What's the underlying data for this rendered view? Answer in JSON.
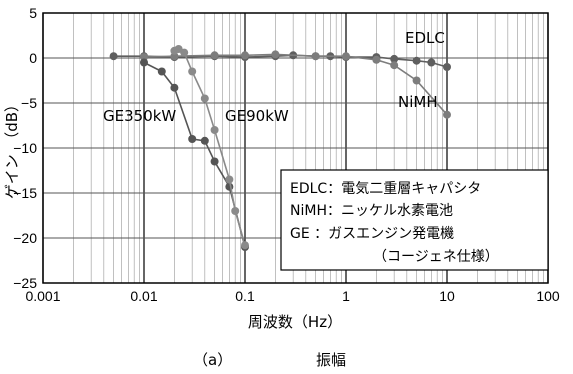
{
  "chart_data": {
    "type": "line",
    "xscale": "log",
    "xlim": [
      0.001,
      100
    ],
    "ylim": [
      -25,
      5
    ],
    "x_ticks": [
      0.001,
      0.01,
      0.1,
      1,
      10,
      100
    ],
    "x_tick_labels": [
      "0.001",
      "0.01",
      "0.1",
      "1",
      "10",
      "100"
    ],
    "y_ticks": [
      5,
      0,
      -5,
      -10,
      -15,
      -20,
      -25
    ],
    "y_tick_labels": [
      "5",
      "0",
      "−5",
      "−10",
      "−15",
      "−20",
      "−25"
    ],
    "xlabel": "周波数（Hz）",
    "ylabel": "ゲイン　（dB）",
    "grid": true,
    "series": [
      {
        "name": "EDLC",
        "color": "#5f5f5f",
        "x": [
          0.005,
          0.01,
          0.02,
          0.05,
          0.1,
          0.2,
          0.3,
          0.5,
          0.7,
          1,
          2,
          3,
          5,
          7,
          10
        ],
        "y": [
          0.2,
          0.2,
          0.1,
          0.2,
          0.1,
          0.2,
          0.3,
          0.2,
          0.2,
          0.1,
          0.1,
          -0.1,
          -0.3,
          -0.5,
          -1.0
        ]
      },
      {
        "name": "NiMH",
        "color": "#7d7d7d",
        "x": [
          0.01,
          0.02,
          0.05,
          0.1,
          0.2,
          0.5,
          1,
          2,
          3,
          5,
          10
        ],
        "y": [
          0.1,
          0.2,
          0.3,
          0.3,
          0.4,
          0.2,
          0.2,
          -0.2,
          -0.8,
          -2.5,
          -6.3
        ]
      },
      {
        "name": "GE350kW",
        "color": "#555555",
        "x": [
          0.01,
          0.015,
          0.02,
          0.03,
          0.04,
          0.05,
          0.07,
          0.1
        ],
        "y": [
          -0.5,
          -1.5,
          -3.3,
          -9.0,
          -9.2,
          -11.5,
          -14.3,
          -21.0
        ]
      },
      {
        "name": "GE90kW",
        "color": "#8a8a8a",
        "x": [
          0.02,
          0.022,
          0.025,
          0.03,
          0.04,
          0.05,
          0.07,
          0.08,
          0.1
        ],
        "y": [
          0.8,
          1.0,
          0.6,
          -1.5,
          -4.5,
          -8.0,
          -13.5,
          -17.0,
          -20.8
        ]
      }
    ],
    "series_labels": [
      "EDLC",
      "NiMH",
      "GE350kW",
      "GE90kW"
    ],
    "legend": {
      "placement": "bottom-right",
      "lines": [
        "EDLC：電気二重層キャパシタ",
        "NiMH：ニッケル水素電池",
        "GE ：ガスエンジン発電機",
        "（コージェネ仕様）"
      ]
    }
  },
  "caption": {
    "label": "（a）",
    "title": "振幅"
  }
}
